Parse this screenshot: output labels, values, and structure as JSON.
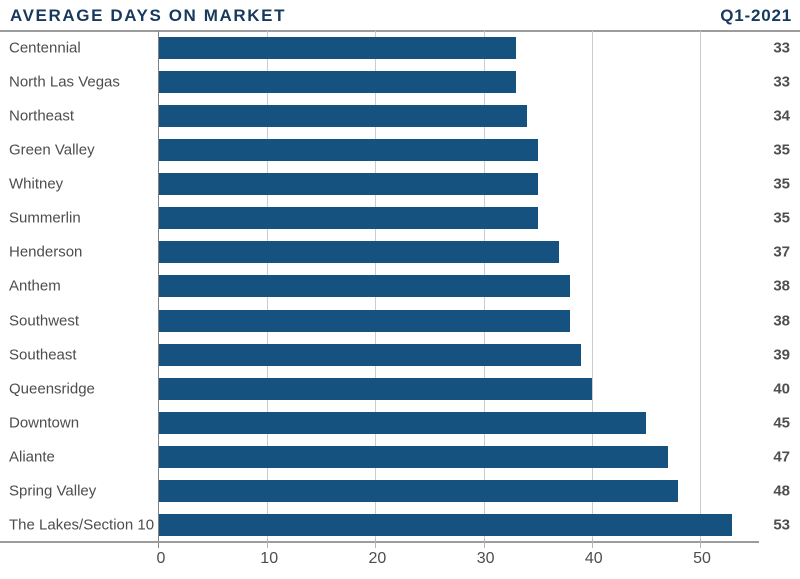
{
  "header": {
    "title": "AVERAGE DAYS ON MARKET",
    "period": "Q1-2021"
  },
  "chart_data": {
    "type": "bar",
    "orientation": "horizontal",
    "title": "AVERAGE DAYS ON MARKET",
    "subtitle": "Q1-2021",
    "categories": [
      "Centennial",
      "North Las Vegas",
      "Northeast",
      "Green Valley",
      "Whitney",
      "Summerlin",
      "Henderson",
      "Anthem",
      "Southwest",
      "Southeast",
      "Queensridge",
      "Downtown",
      "Aliante",
      "Spring Valley",
      "The Lakes/Section 10"
    ],
    "values": [
      33,
      33,
      34,
      35,
      35,
      35,
      37,
      38,
      38,
      39,
      40,
      45,
      47,
      48,
      53
    ],
    "x_ticks": [
      0,
      10,
      20,
      30,
      40,
      50
    ],
    "xlim": [
      0,
      55
    ],
    "grid": true,
    "value_labels_shown": true,
    "legend": "none",
    "bar_color": "#15527f",
    "title_color": "#17395e",
    "label_color": "#4d4d4d",
    "gridline_color": "#cccccc"
  }
}
